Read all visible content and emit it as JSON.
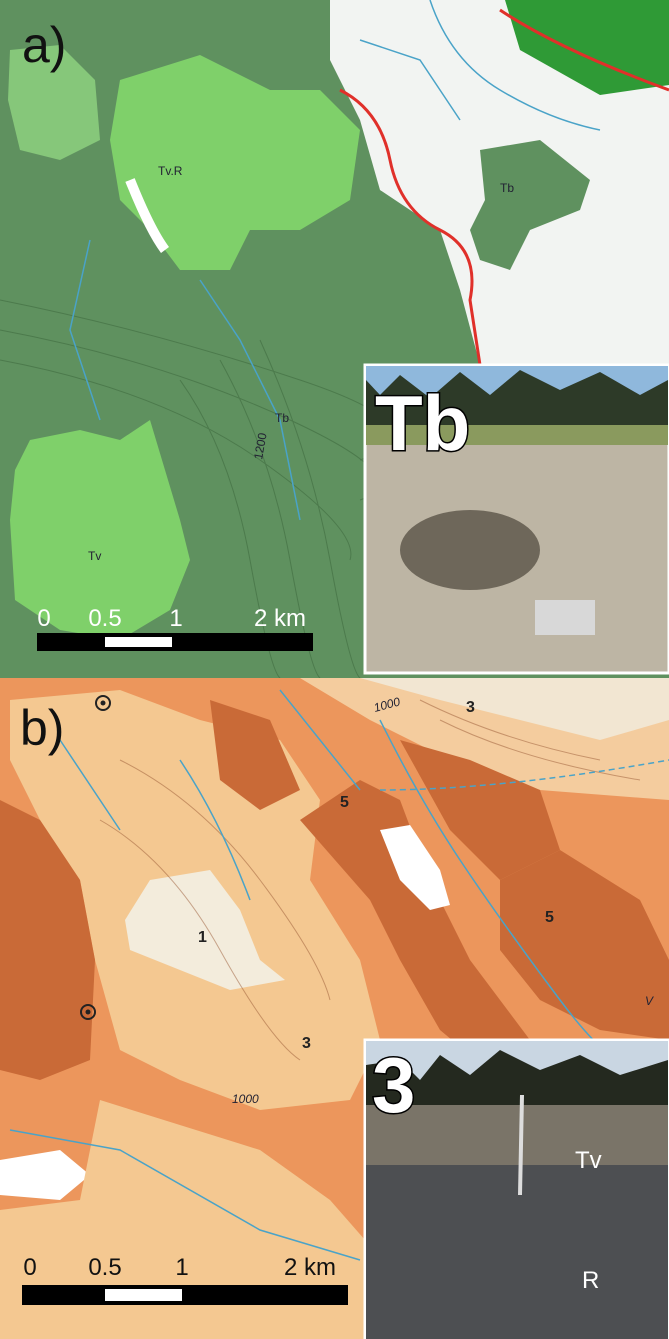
{
  "panels": [
    {
      "label": "a)",
      "map_labels": [
        "Tv.R",
        "Tb",
        "Tb",
        "Tv",
        "1200"
      ],
      "scale_bar": [
        "0",
        "0.5",
        "1",
        "2 km"
      ],
      "inset": {
        "label": "Tb",
        "labels": []
      }
    },
    {
      "label": "b)",
      "map_labels": [
        "1000",
        "3",
        "5",
        "5",
        "1",
        "3",
        "1000",
        "V"
      ],
      "scale_bar": [
        "0",
        "0.5",
        "1",
        "2 km"
      ],
      "inset": {
        "label": "3",
        "labels": [
          "Tv",
          "R"
        ]
      }
    }
  ]
}
